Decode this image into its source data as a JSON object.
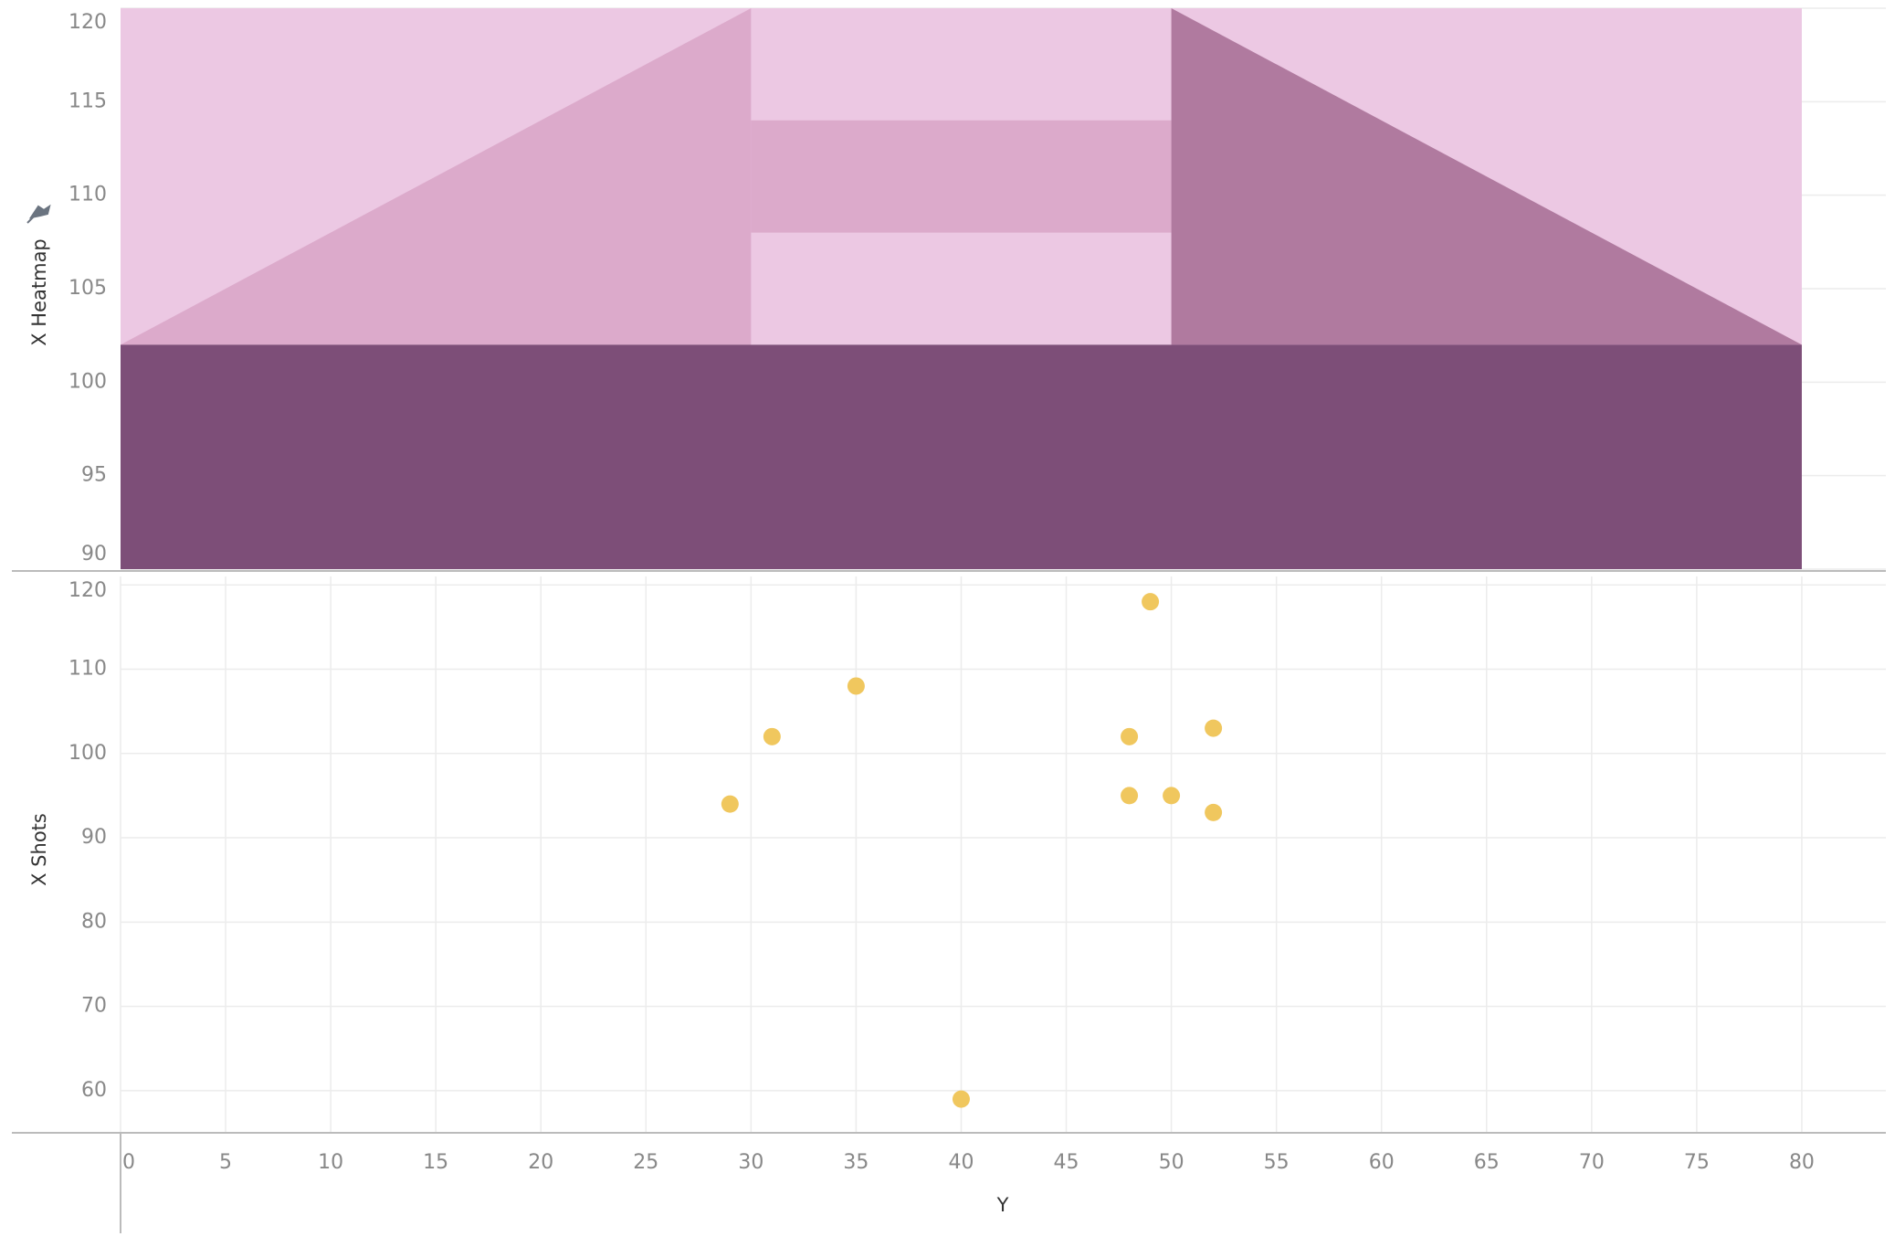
{
  "chart_data": [
    {
      "type": "polygon",
      "ylabel": "X Heatmap",
      "xlim": [
        0,
        84
      ],
      "ylim": [
        90,
        120
      ],
      "yticks": [
        90,
        95,
        100,
        105,
        110,
        115,
        120
      ],
      "grid": true,
      "shapes": [
        {
          "color": "#ecc8e3",
          "x": [
            0,
            80,
            80,
            0
          ],
          "y": [
            102,
            102,
            120,
            120
          ]
        },
        {
          "color": "#dcaacb",
          "x": [
            0,
            30,
            30
          ],
          "y": [
            102,
            120,
            102
          ]
        },
        {
          "color": "#dcaacb",
          "x": [
            30,
            50,
            50,
            30
          ],
          "y": [
            108,
            108,
            114,
            114
          ]
        },
        {
          "color": "#b07a9f",
          "x": [
            50,
            50,
            80
          ],
          "y": [
            102,
            120,
            102
          ]
        },
        {
          "color": "#7d4e78",
          "x": [
            0,
            80,
            80,
            0
          ],
          "y": [
            90,
            90,
            102,
            102
          ]
        }
      ]
    },
    {
      "type": "scatter",
      "ylabel": "X Shots",
      "xlabel": "Y",
      "xlim": [
        0,
        84
      ],
      "ylim": [
        55,
        121
      ],
      "xticks": [
        0,
        5,
        10,
        15,
        20,
        25,
        30,
        35,
        40,
        45,
        50,
        55,
        60,
        65,
        70,
        75,
        80
      ],
      "yticks": [
        60,
        70,
        80,
        90,
        100,
        110,
        120
      ],
      "grid": true,
      "color": "#f0c75e",
      "x": [
        29,
        31,
        35,
        40,
        48,
        48,
        49,
        50,
        52,
        52
      ],
      "y": [
        94,
        102,
        108,
        59,
        102,
        95,
        118,
        95,
        103,
        93
      ]
    }
  ]
}
